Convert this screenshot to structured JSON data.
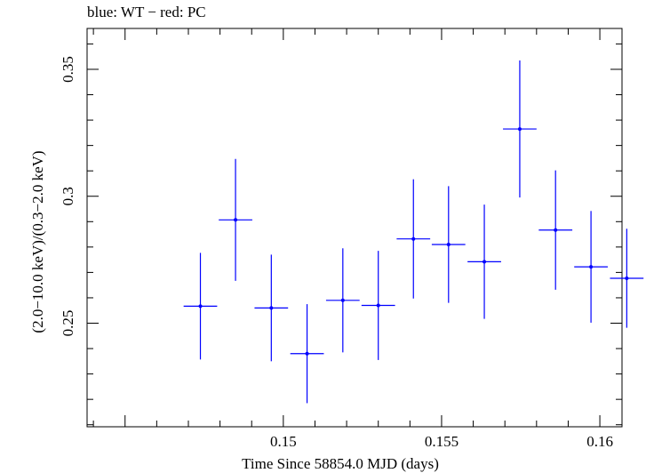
{
  "chart_data": {
    "type": "scatter",
    "title": "blue: WT − red: PC",
    "xlabel": "Time Since 58854.0 MJD (days)",
    "ylabel": "(2.0−10.0 keV)/(0.3−2.0 keV)",
    "xlim": [
      0.1438,
      0.1607
    ],
    "ylim": [
      0.2092,
      0.3661
    ],
    "x_ticks": [
      {
        "value": 0.15,
        "label": "0.15"
      },
      {
        "value": 0.155,
        "label": "0.155"
      },
      {
        "value": 0.16,
        "label": "0.16"
      }
    ],
    "y_ticks": [
      {
        "value": 0.25,
        "label": "0.25"
      },
      {
        "value": 0.3,
        "label": "0.3"
      },
      {
        "value": 0.35,
        "label": "0.35"
      }
    ],
    "series": [
      {
        "name": "WT",
        "color": "#0000ff",
        "points": [
          {
            "x": 0.14738,
            "xerr": 0.00053,
            "y": 0.2567,
            "yerr": 0.021
          },
          {
            "x": 0.14849,
            "xerr": 0.00053,
            "y": 0.2907,
            "yerr": 0.024
          },
          {
            "x": 0.14962,
            "xerr": 0.00053,
            "y": 0.256,
            "yerr": 0.021
          },
          {
            "x": 0.15075,
            "xerr": 0.00053,
            "y": 0.238,
            "yerr": 0.0195
          },
          {
            "x": 0.15188,
            "xerr": 0.00053,
            "y": 0.259,
            "yerr": 0.0205
          },
          {
            "x": 0.153,
            "xerr": 0.00053,
            "y": 0.257,
            "yerr": 0.0215
          },
          {
            "x": 0.15411,
            "xerr": 0.00053,
            "y": 0.2832,
            "yerr": 0.0235
          },
          {
            "x": 0.15522,
            "xerr": 0.00053,
            "y": 0.281,
            "yerr": 0.023
          },
          {
            "x": 0.15635,
            "xerr": 0.00053,
            "y": 0.2742,
            "yerr": 0.0225
          },
          {
            "x": 0.15747,
            "xerr": 0.00053,
            "y": 0.3265,
            "yerr": 0.027
          },
          {
            "x": 0.1586,
            "xerr": 0.00053,
            "y": 0.2867,
            "yerr": 0.0235
          },
          {
            "x": 0.15972,
            "xerr": 0.00053,
            "y": 0.2722,
            "yerr": 0.022
          },
          {
            "x": 0.16085,
            "xerr": 0.00053,
            "y": 0.2677,
            "yerr": 0.0195
          }
        ]
      }
    ]
  }
}
